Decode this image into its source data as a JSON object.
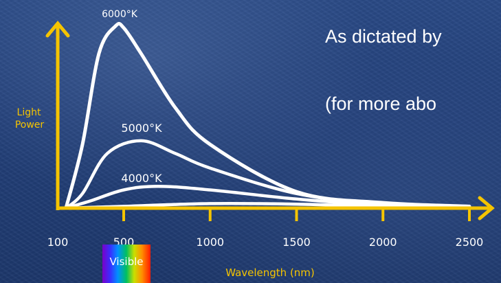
{
  "slide": {
    "line1": "As dictated by",
    "line2": "(for more abo"
  },
  "visible_band": {
    "label": "Visible"
  },
  "colors": {
    "axis": "#f5c400",
    "curve": "#ffffff",
    "axis_label": "#f5c400",
    "text": "#ffffff"
  },
  "chart_data": {
    "type": "line",
    "title": "",
    "xlabel": "Wavelength (nm)",
    "ylabel": "Light Power",
    "xlim": [
      100,
      2600
    ],
    "ylim": [
      0,
      1
    ],
    "x_ticks": [
      "100",
      "500",
      "1000",
      "1500",
      "2000",
      "2500"
    ],
    "grid": false,
    "series": [
      {
        "name": "6000°K",
        "x": [
          150,
          250,
          350,
          450,
          500,
          600,
          800,
          1000,
          1500,
          2000,
          2500
        ],
        "values": [
          0.0,
          0.35,
          0.85,
          1.0,
          0.99,
          0.85,
          0.55,
          0.35,
          0.09,
          0.03,
          0.01
        ]
      },
      {
        "name": "5000°K",
        "x": [
          150,
          250,
          400,
          600,
          800,
          1000,
          1500,
          2000,
          2500
        ],
        "values": [
          0.0,
          0.08,
          0.3,
          0.37,
          0.3,
          0.22,
          0.08,
          0.02,
          0.005
        ]
      },
      {
        "name": "4000°K",
        "x": [
          150,
          300,
          500,
          700,
          1000,
          1500,
          2000,
          2500
        ],
        "values": [
          0.0,
          0.04,
          0.1,
          0.12,
          0.1,
          0.05,
          0.015,
          0.005
        ]
      },
      {
        "x": [
          150,
          500,
          1000,
          1500,
          2000,
          2500
        ],
        "values": [
          0.0,
          0.01,
          0.025,
          0.022,
          0.01,
          0.004
        ]
      }
    ]
  }
}
